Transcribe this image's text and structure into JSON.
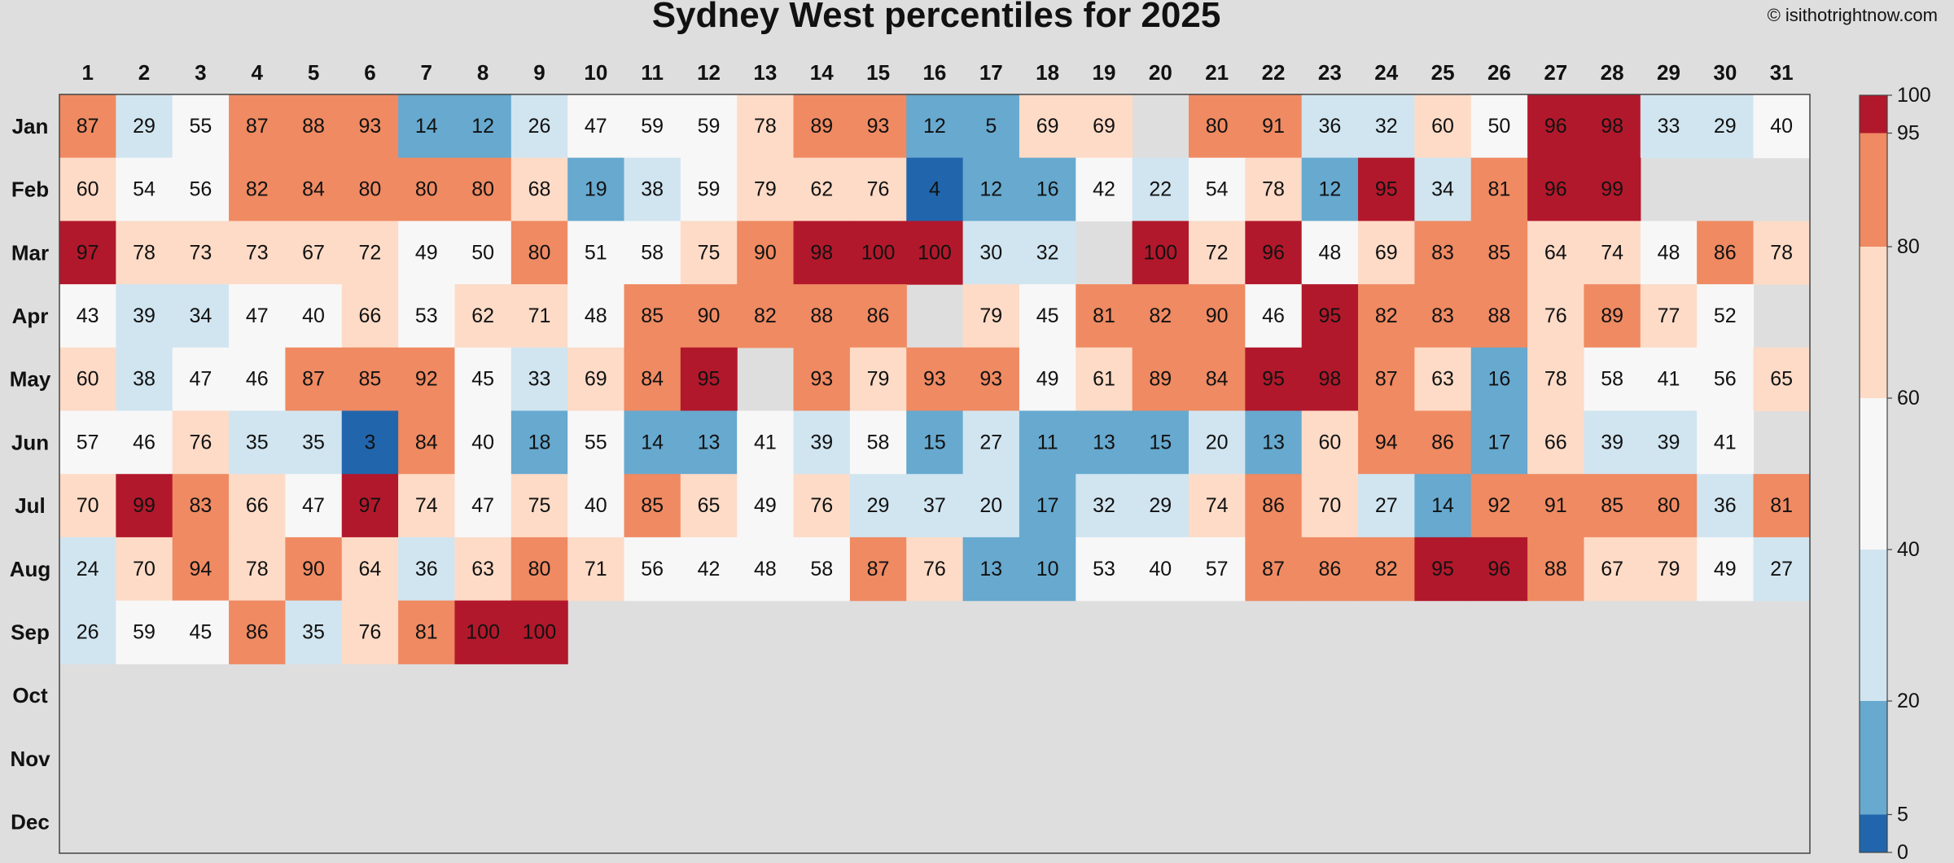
{
  "chart_data": {
    "type": "heatmap",
    "title": "Sydney West percentiles for 2025",
    "credit": "© isithotrightnow.com",
    "x_categories": [
      "1",
      "2",
      "3",
      "4",
      "5",
      "6",
      "7",
      "8",
      "9",
      "10",
      "11",
      "12",
      "13",
      "14",
      "15",
      "16",
      "17",
      "18",
      "19",
      "20",
      "21",
      "22",
      "23",
      "24",
      "25",
      "26",
      "27",
      "28",
      "29",
      "30",
      "31"
    ],
    "y_categories": [
      "Jan",
      "Feb",
      "Mar",
      "Apr",
      "May",
      "Jun",
      "Jul",
      "Aug",
      "Sep",
      "Oct",
      "Nov",
      "Dec"
    ],
    "values": [
      [
        87,
        29,
        55,
        87,
        88,
        93,
        14,
        12,
        26,
        47,
        59,
        59,
        78,
        89,
        93,
        12,
        5,
        69,
        69,
        null,
        80,
        91,
        36,
        32,
        60,
        50,
        96,
        98,
        33,
        29,
        40
      ],
      [
        60,
        54,
        56,
        82,
        84,
        80,
        80,
        80,
        68,
        19,
        38,
        59,
        79,
        62,
        76,
        4,
        12,
        16,
        42,
        22,
        54,
        78,
        12,
        95,
        34,
        81,
        96,
        99
      ],
      [
        97,
        78,
        73,
        73,
        67,
        72,
        49,
        50,
        80,
        51,
        58,
        75,
        90,
        98,
        100,
        100,
        30,
        32,
        null,
        100,
        72,
        96,
        48,
        69,
        83,
        85,
        64,
        74,
        48,
        86,
        78
      ],
      [
        43,
        39,
        34,
        47,
        40,
        66,
        53,
        62,
        71,
        48,
        85,
        90,
        82,
        88,
        86,
        null,
        79,
        45,
        81,
        82,
        90,
        46,
        95,
        82,
        83,
        88,
        76,
        89,
        77,
        52
      ],
      [
        60,
        38,
        47,
        46,
        87,
        85,
        92,
        45,
        33,
        69,
        84,
        95,
        null,
        93,
        79,
        93,
        93,
        49,
        61,
        89,
        84,
        95,
        98,
        87,
        63,
        16,
        78,
        58,
        41,
        56,
        65
      ],
      [
        57,
        46,
        76,
        35,
        35,
        3,
        84,
        40,
        18,
        55,
        14,
        13,
        41,
        39,
        58,
        15,
        27,
        11,
        13,
        15,
        20,
        13,
        60,
        94,
        86,
        17,
        66,
        39,
        39,
        41
      ],
      [
        70,
        99,
        83,
        66,
        47,
        97,
        74,
        47,
        75,
        40,
        85,
        65,
        49,
        76,
        29,
        37,
        20,
        17,
        32,
        29,
        74,
        86,
        70,
        27,
        14,
        92,
        91,
        85,
        80,
        36,
        81
      ],
      [
        24,
        70,
        94,
        78,
        90,
        64,
        36,
        63,
        80,
        71,
        56,
        42,
        48,
        58,
        87,
        76,
        13,
        10,
        53,
        40,
        57,
        87,
        86,
        82,
        95,
        96,
        88,
        67,
        79,
        49,
        27
      ],
      [
        26,
        59,
        45,
        86,
        35,
        76,
        81,
        100,
        100
      ],
      [],
      [],
      []
    ],
    "colorbar": {
      "ticks": [
        0,
        5,
        20,
        40,
        60,
        80,
        95,
        100
      ],
      "bins": [
        {
          "from": 0,
          "to": 5,
          "color": "#2166ac"
        },
        {
          "from": 5,
          "to": 20,
          "color": "#67a9cf"
        },
        {
          "from": 20,
          "to": 40,
          "color": "#d1e5f0"
        },
        {
          "from": 40,
          "to": 60,
          "color": "#f7f7f7"
        },
        {
          "from": 60,
          "to": 80,
          "color": "#fddbc7"
        },
        {
          "from": 80,
          "to": 95,
          "color": "#ef8a62"
        },
        {
          "from": 95,
          "to": 100,
          "color": "#b2182b"
        }
      ]
    },
    "missing_color": "#dedede",
    "background_color": "#dedede"
  }
}
